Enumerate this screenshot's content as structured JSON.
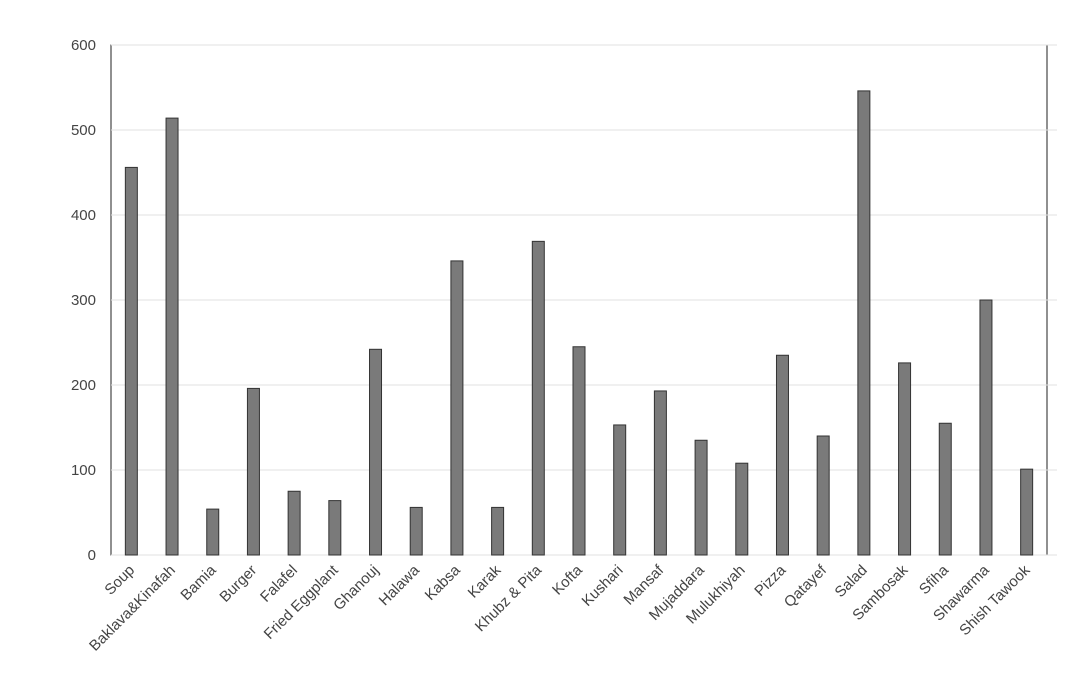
{
  "chart_data": {
    "type": "bar",
    "categories": [
      "Soup",
      "Baklava&Kinafah",
      "Bamia",
      "Burger",
      "Falafel",
      "Fried Eggplant",
      "Ghanouj",
      "Halawa",
      "Kabsa",
      "Karak",
      "Khubz & Pita",
      "Kofta",
      "Kushari",
      "Mansaf",
      "Mujaddara",
      "Mulukhiyah",
      "Pizza",
      "Qatayef",
      "Salad",
      "Sambosak",
      "Sfiha",
      "Shawarma",
      "Shish Tawook"
    ],
    "values": [
      456,
      514,
      54,
      196,
      75,
      64,
      242,
      56,
      346,
      56,
      369,
      245,
      153,
      193,
      135,
      108,
      235,
      140,
      546,
      226,
      155,
      300,
      101
    ],
    "color": "#7a7a7a",
    "ylim": [
      0,
      600
    ],
    "yticks": [
      0,
      100,
      200,
      300,
      400,
      500,
      600
    ],
    "grid": true
  }
}
